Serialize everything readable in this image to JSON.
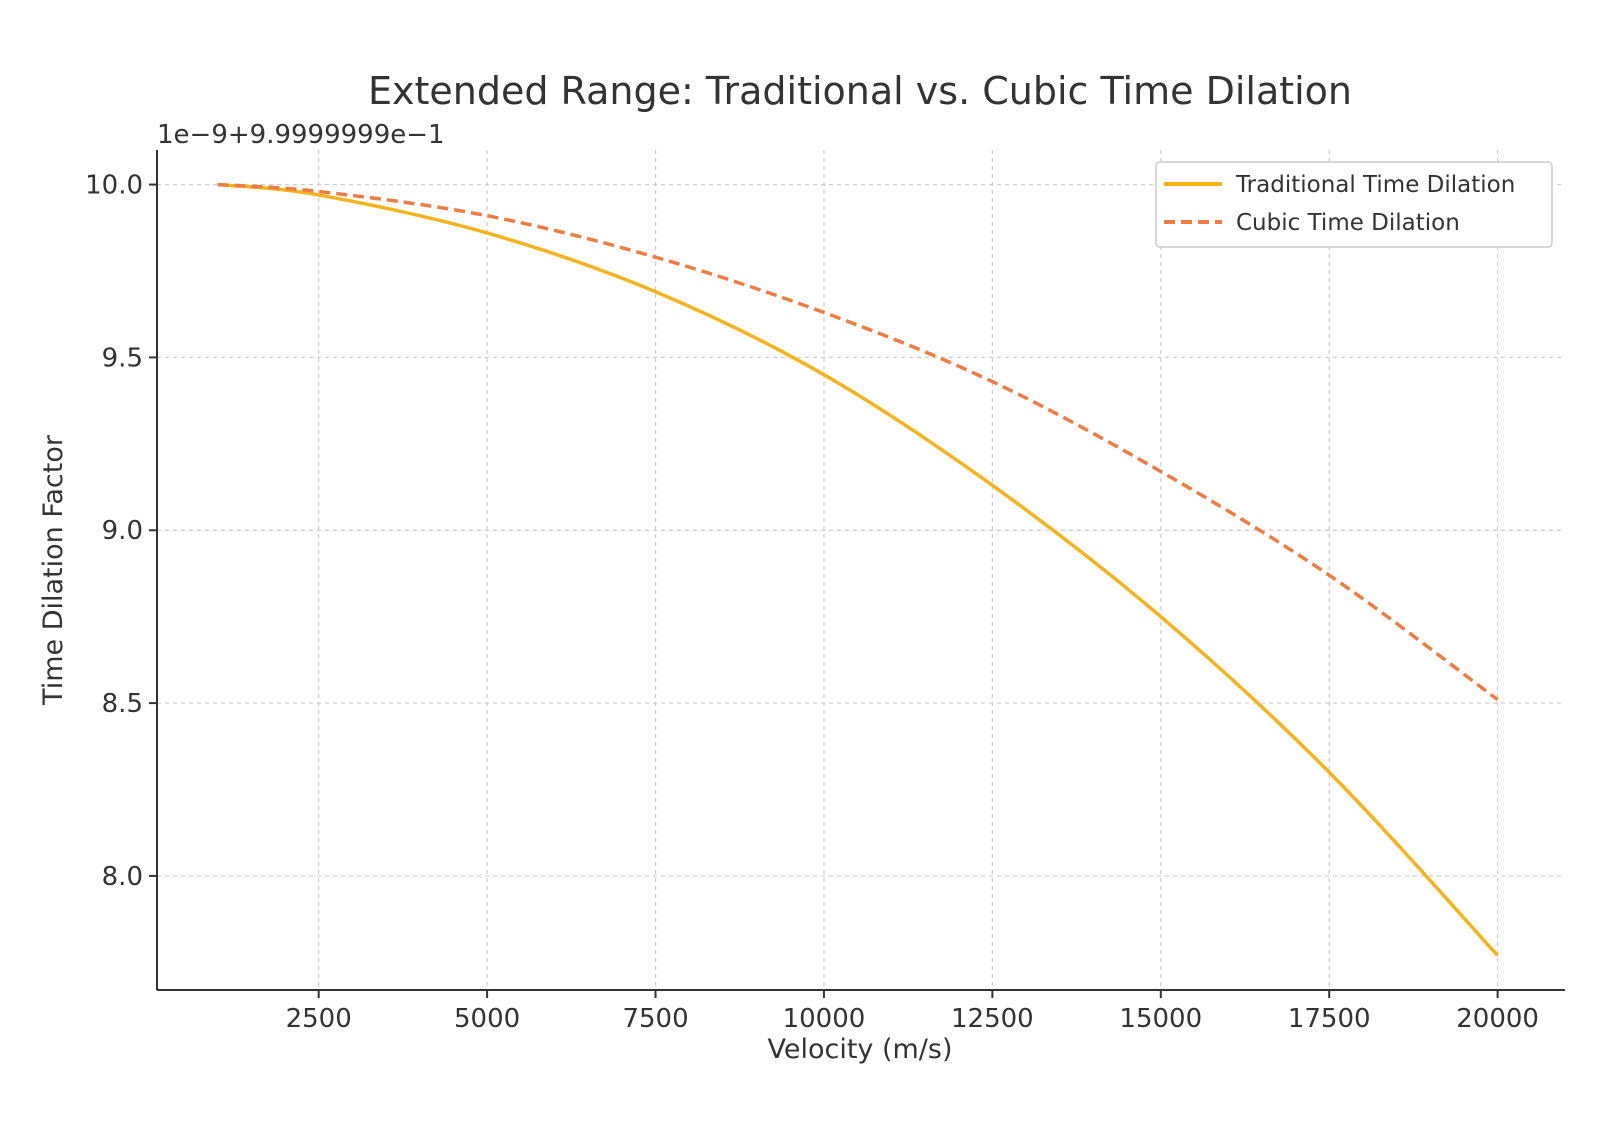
{
  "chart_data": {
    "type": "line",
    "title": "Extended Range: Traditional vs. Cubic Time Dilation",
    "offset_label": "1e−9+9.9999999e−1",
    "xlabel": "Velocity (m/s)",
    "ylabel": "Time Dilation Factor",
    "xlim": [
      100,
      21000
    ],
    "ylim": [
      7.67,
      10.1
    ],
    "x_ticks": [
      2500,
      5000,
      7500,
      10000,
      12500,
      15000,
      17500,
      20000
    ],
    "y_ticks": [
      8.0,
      8.5,
      9.0,
      9.5,
      10.0
    ],
    "y_tick_labels": [
      "8.0",
      "8.5",
      "9.0",
      "9.5",
      "10.0"
    ],
    "grid": true,
    "legend_position": "top-right",
    "x": [
      1000,
      2500,
      5000,
      7500,
      10000,
      12500,
      15000,
      17500,
      20000
    ],
    "series": [
      {
        "name": "Traditional Time Dilation",
        "color": "#f5b31f",
        "style": "solid",
        "values": [
          10.0,
          9.97,
          9.86,
          9.69,
          9.45,
          9.13,
          8.75,
          8.3,
          7.77
        ]
      },
      {
        "name": "Cubic Time Dilation",
        "color": "#ee7c43",
        "style": "dashed",
        "values": [
          10.0,
          9.98,
          9.91,
          9.79,
          9.63,
          9.43,
          9.17,
          8.87,
          8.51
        ]
      }
    ]
  }
}
